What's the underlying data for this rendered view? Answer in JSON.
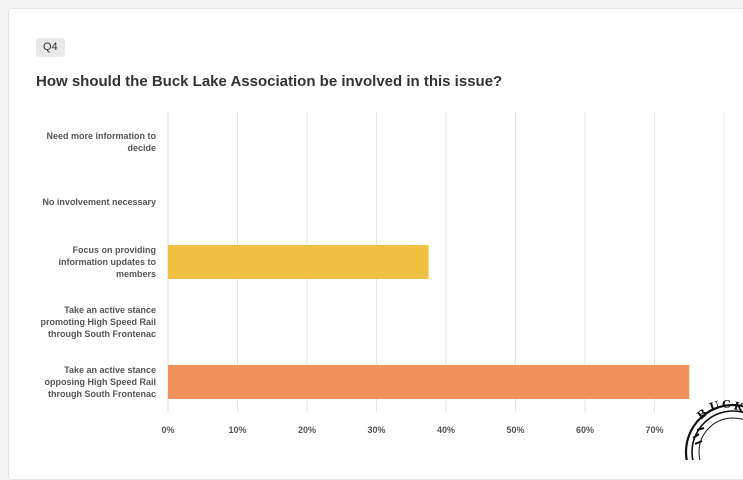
{
  "question": {
    "badge": "Q4",
    "title": "How should the Buck Lake Association be involved in this issue?"
  },
  "chart_data": {
    "type": "bar",
    "orientation": "horizontal",
    "categories": [
      [
        "Need more information to",
        "decide"
      ],
      [
        "No involvement necessary"
      ],
      [
        "Focus on providing",
        "information updates to",
        "members"
      ],
      [
        "Take an active stance",
        "promoting High Speed Rail",
        "through South Frontenac"
      ],
      [
        "Take an active stance",
        "opposing High Speed Rail",
        "through South Frontenac"
      ]
    ],
    "values": [
      0,
      0,
      37.5,
      0,
      75
    ],
    "bar_colors": [
      "#f0c040",
      "#f0c040",
      "#f0c040",
      "#f0c040",
      "#f0915a"
    ],
    "xlim": [
      0,
      80
    ],
    "x_ticks": [
      0,
      10,
      20,
      30,
      40,
      50,
      60,
      70
    ],
    "tick_suffix": "%",
    "grid": true
  },
  "watermark": {
    "kind": "seal",
    "text": "BUCK LAKE"
  },
  "colors": {
    "grid": "#e5e5e5",
    "label": "#555555"
  }
}
